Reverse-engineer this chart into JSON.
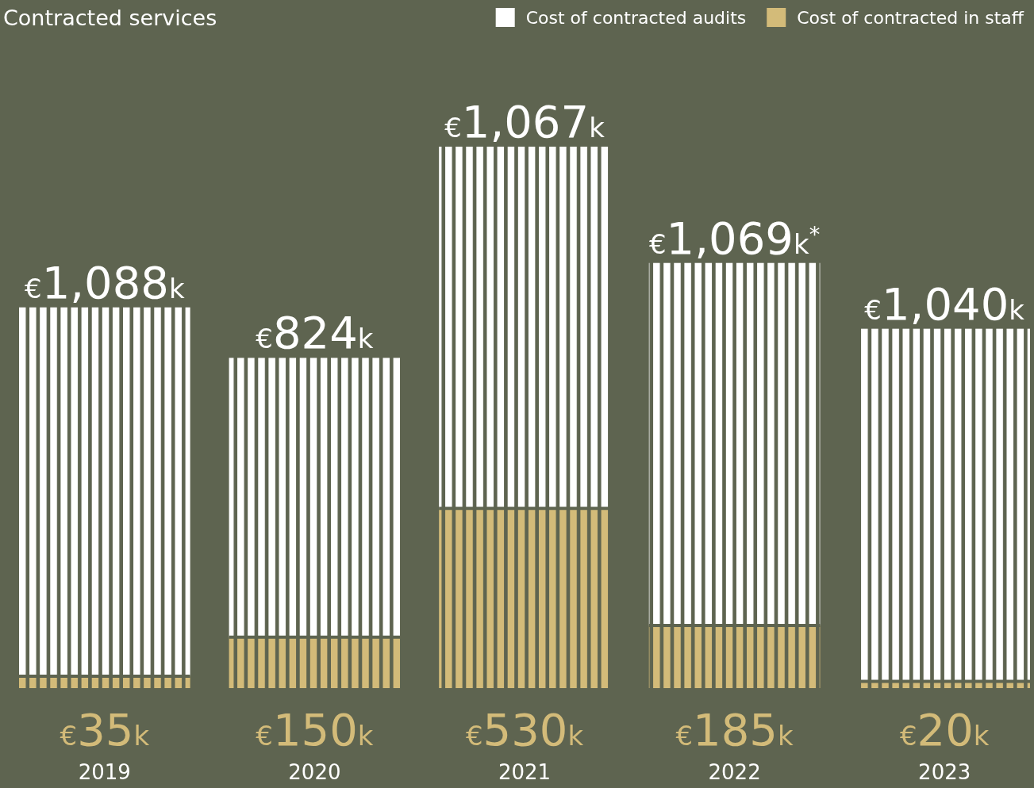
{
  "chart_data": {
    "type": "bar",
    "title": "Contracted services",
    "stacked": true,
    "legend": "top right",
    "categories": [
      "2019",
      "2020",
      "2021",
      "2022",
      "2023"
    ],
    "series": [
      {
        "name": "Cost of contracted in staff",
        "color": "#d3bb79",
        "values": [
          35,
          150,
          530,
          185,
          20
        ],
        "value_labels": [
          "€35k",
          "€150k",
          "€530k",
          "€185k",
          "€20k"
        ]
      },
      {
        "name": "Cost of contracted audits",
        "color": "#ffffff",
        "values": [
          1088,
          824,
          1067,
          1069,
          1040
        ],
        "value_labels": [
          "€1,088k",
          "€824k",
          "€1,067k",
          "€1,069k$^{*}$",
          "€1,040k"
        ]
      }
    ]
  }
}
